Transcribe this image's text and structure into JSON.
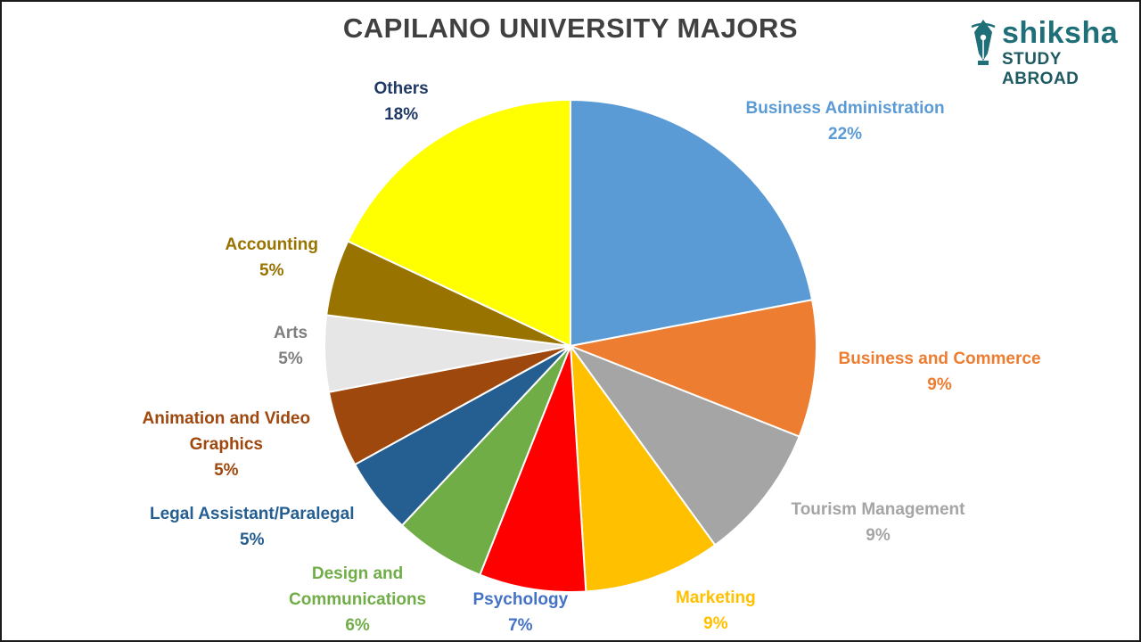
{
  "chart_data": {
    "type": "pie",
    "title": "CAPILANO UNIVERSITY MAJORS",
    "slices": [
      {
        "label": "Business Administration",
        "value": 22,
        "value_label": "22%",
        "color": "#5b9bd5",
        "text_color": "#5b9bd5"
      },
      {
        "label": "Business and Commerce",
        "value": 9,
        "value_label": "9%",
        "color": "#ed7d31",
        "text_color": "#ed7d31"
      },
      {
        "label": "Tourism Management",
        "value": 9,
        "value_label": "9%",
        "color": "#a5a5a5",
        "text_color": "#a5a5a5"
      },
      {
        "label": "Marketing",
        "value": 9,
        "value_label": "9%",
        "color": "#ffc000",
        "text_color": "#ffc000"
      },
      {
        "label": "Psychology",
        "value": 7,
        "value_label": "7%",
        "color": "#ff0000",
        "text_color": "#4472c4"
      },
      {
        "label": "Design and Communications",
        "value": 6,
        "value_label": "6%",
        "color": "#70ad47",
        "text_color": "#70ad47"
      },
      {
        "label": "Legal Assistant/Paralegal",
        "value": 5,
        "value_label": "5%",
        "color": "#255e91",
        "text_color": "#255e91"
      },
      {
        "label": "Animation and Video Graphics",
        "value": 5,
        "value_label": "5%",
        "color": "#9e480e",
        "text_color": "#9e480e"
      },
      {
        "label": "Arts",
        "value": 5,
        "value_label": "5%",
        "color": "#e7e6e6",
        "text_color": "#7f7f7f"
      },
      {
        "label": "Accounting",
        "value": 5,
        "value_label": "5%",
        "color": "#997300",
        "text_color": "#997300"
      },
      {
        "label": "Others",
        "value": 18,
        "value_label": "18%",
        "color": "#ffff00",
        "text_color": "#1f3864"
      }
    ]
  },
  "logo": {
    "word": "shiksha",
    "sub": "STUDY ABROAD",
    "icon": "pen-nib-icon",
    "color": "#1f6f78"
  }
}
